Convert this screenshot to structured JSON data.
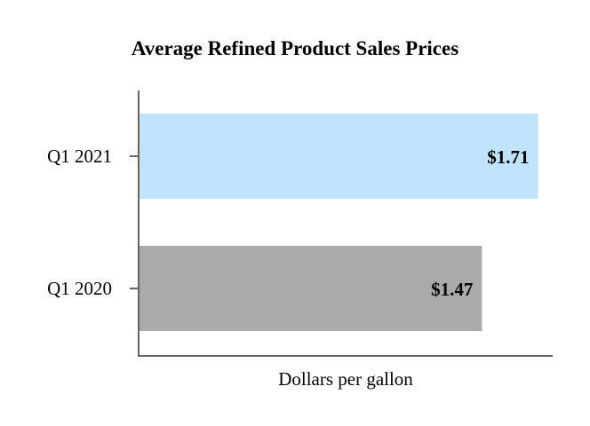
{
  "chart_data": {
    "type": "bar",
    "orientation": "horizontal",
    "title": "Average Refined Product Sales Prices",
    "xlabel": "Dollars per gallon",
    "ylabel": "",
    "categories": [
      "Q1 2021",
      "Q1 2020"
    ],
    "values": [
      1.71,
      1.47
    ],
    "data_labels": [
      "$1.71",
      "$1.47"
    ],
    "colors": [
      "#c0e4fb",
      "#aaaaaa"
    ],
    "xlim": [
      0,
      1.75
    ],
    "grid": false,
    "legend": "none"
  }
}
